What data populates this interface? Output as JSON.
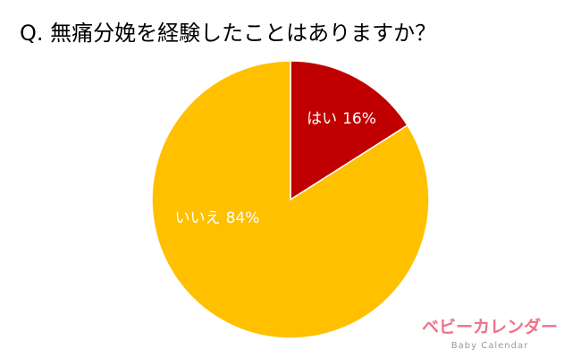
{
  "chart_data": {
    "type": "pie",
    "title": "Q. 無痛分娩を経験したことはありますか？",
    "categories": [
      "はい",
      "いいえ"
    ],
    "values": [
      16,
      84
    ],
    "value_labels": [
      "16%",
      "84%"
    ],
    "colors": [
      "#c00000",
      "#ffc000"
    ]
  },
  "brand": {
    "name": "ベビーカレンダー",
    "subtitle": "Baby Calendar"
  }
}
